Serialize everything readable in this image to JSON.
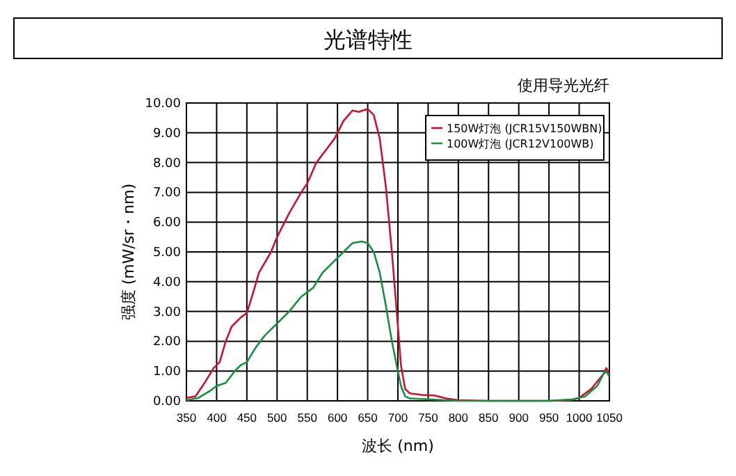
{
  "chart_data": {
    "type": "line",
    "title": "光谱特性",
    "subtitle": "使用导光光纤",
    "xlabel": "波长 (nm)",
    "ylabel": "强度 (mW/sr・nm)",
    "xlim": [
      350,
      1050
    ],
    "xticks": [
      350,
      400,
      450,
      500,
      550,
      600,
      650,
      700,
      750,
      800,
      850,
      900,
      950,
      1000,
      1050
    ],
    "ylim": [
      0,
      10
    ],
    "yticks": [
      {
        "value": 0,
        "label": "0.00"
      },
      {
        "value": 1,
        "label": "1.00"
      },
      {
        "value": 2,
        "label": "2.00"
      },
      {
        "value": 3,
        "label": "3.00"
      },
      {
        "value": 4,
        "label": "4.00"
      },
      {
        "value": 5,
        "label": "5.00"
      },
      {
        "value": 6,
        "label": "6.00"
      },
      {
        "value": 7,
        "label": "7.00"
      },
      {
        "value": 8,
        "label": "8.00"
      },
      {
        "value": 9,
        "label": "9.00"
      },
      {
        "value": 10,
        "label": "10.00"
      }
    ],
    "grid": true,
    "legend": "top right",
    "line_style": "solid",
    "series": [
      {
        "name": "150W灯泡 (JCR15V150WBN)",
        "color": "#cc1030",
        "x": [
          350,
          365,
          380,
          395,
          405,
          415,
          425,
          440,
          450,
          460,
          470,
          490,
          500,
          520,
          540,
          550,
          565,
          580,
          595,
          610,
          625,
          635,
          650,
          660,
          670,
          680,
          690,
          700,
          705,
          712,
          720,
          740,
          760,
          780,
          800,
          850,
          900,
          950,
          985,
          1000,
          1020,
          1040,
          1045,
          1050
        ],
        "values": [
          0.1,
          0.15,
          0.6,
          1.1,
          1.3,
          2.0,
          2.5,
          2.8,
          2.95,
          3.6,
          4.3,
          5.0,
          5.5,
          6.3,
          7.0,
          7.3,
          8.0,
          8.4,
          8.8,
          9.4,
          9.75,
          9.7,
          9.8,
          9.6,
          8.8,
          7.2,
          5.0,
          2.5,
          1.2,
          0.4,
          0.25,
          0.2,
          0.18,
          0.08,
          0.02,
          0,
          0,
          0,
          0.02,
          0.1,
          0.4,
          0.9,
          1.1,
          0.9
        ]
      },
      {
        "name": "100W灯泡 (JCR12V100WB)",
        "color": "#169040",
        "x": [
          350,
          370,
          390,
          400,
          415,
          430,
          440,
          450,
          465,
          480,
          500,
          520,
          540,
          560,
          575,
          595,
          610,
          625,
          640,
          650,
          660,
          670,
          680,
          690,
          700,
          705,
          712,
          720,
          750,
          800,
          950,
          990,
          1010,
          1030,
          1040,
          1045,
          1050
        ],
        "values": [
          0.02,
          0.1,
          0.35,
          0.5,
          0.6,
          1.0,
          1.2,
          1.3,
          1.8,
          2.2,
          2.6,
          3.0,
          3.5,
          3.8,
          4.3,
          4.7,
          5.0,
          5.3,
          5.35,
          5.3,
          5.0,
          4.3,
          3.2,
          2.0,
          1.0,
          0.5,
          0.15,
          0.08,
          0.05,
          0,
          0,
          0.05,
          0.15,
          0.5,
          0.9,
          1.0,
          0.8
        ]
      }
    ]
  }
}
